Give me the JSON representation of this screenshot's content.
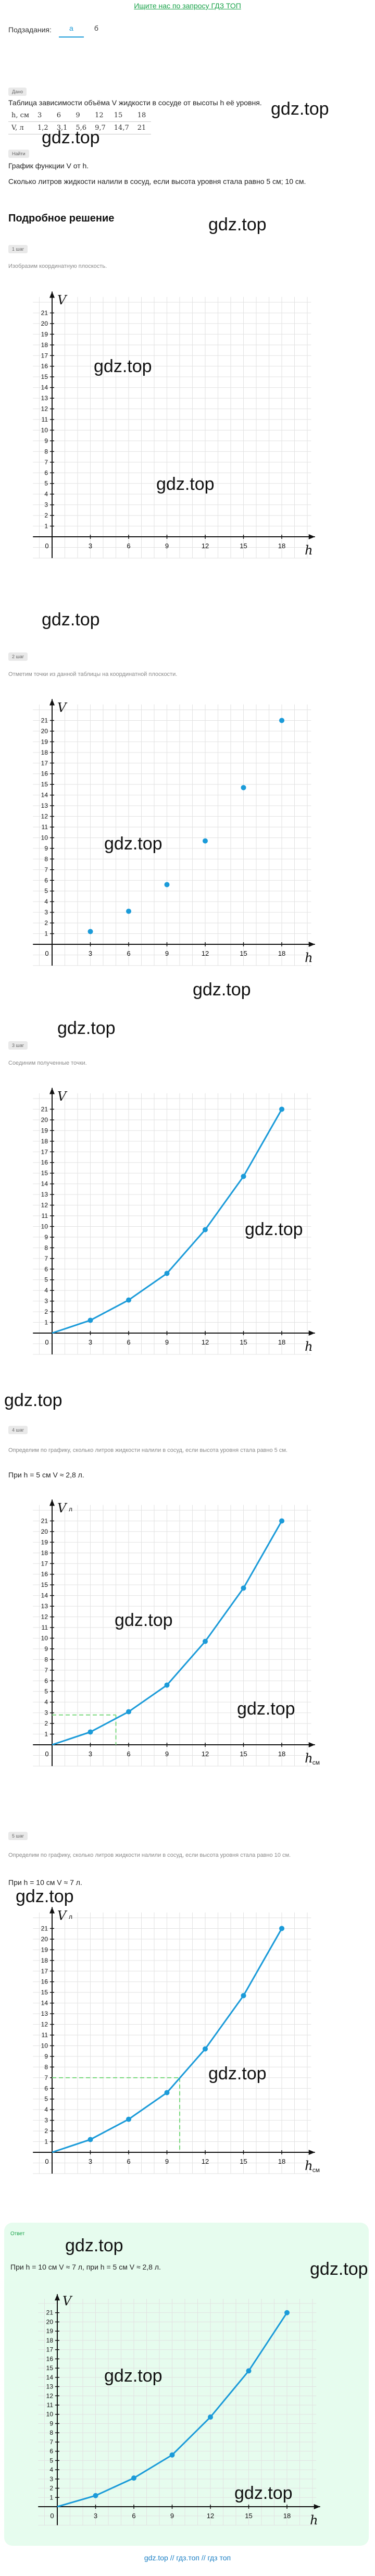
{
  "top_link": "Ищите нас по запросу ГДЗ ТОП",
  "tabs_label": "Подзадания:",
  "tabs": [
    "а",
    "б"
  ],
  "given": {
    "tag": "Дано",
    "text": "Таблица зависимости объёма V жидкости в сосуде от высоты h её уровня.",
    "row1": [
      "h, см",
      "3",
      "6",
      "9",
      "12",
      "15",
      "18"
    ],
    "row2": [
      "V, л",
      "1,2",
      "3,1",
      "5,6",
      "9,7",
      "14,7",
      "21"
    ]
  },
  "find": {
    "tag": "Найти",
    "line1": "График функции V от h.",
    "line2": "Сколько литров жидкости налили в сосуд, если высота уровня стала равно 5 см; 10 см."
  },
  "solution_title": "Подробное решение",
  "steps": [
    {
      "tag": "1 шаг",
      "text": "Изобразим координатную плоскость."
    },
    {
      "tag": "2 шаг",
      "text": "Отметим точки из данной таблицы на координатной плоскости."
    },
    {
      "tag": "3 шаг",
      "text": "Соединим полученные точки."
    },
    {
      "tag": "4 шаг",
      "text": "Определим по графику, сколько литров жидкости налили в сосуд, если высота уровня стала равно 5 см.",
      "result": "При h = 5 см V ≈ 2,8 л."
    },
    {
      "tag": "5 шаг",
      "text": "Определим по графику, сколько литров жидкости налили в сосуд, если высота уровня стала равно 10 см.",
      "result": "При h = 10 см V ≈ 7 л."
    }
  ],
  "answer": {
    "tag": "Ответ",
    "text": "При h = 10 см V ≈ 7 л, при h = 5 см V ≈ 2,8 л."
  },
  "watermark": "gdz.top",
  "footer": "gdz.top // гдз.топ // гдз топ",
  "chart_data": [
    {
      "type": "axes",
      "xlabel": "h",
      "ylabel": "V",
      "xticks": [
        3,
        6,
        9,
        12,
        15,
        18
      ],
      "yticks": [
        1,
        2,
        3,
        4,
        5,
        6,
        7,
        8,
        9,
        10,
        11,
        12,
        13,
        14,
        15,
        16,
        17,
        18,
        19,
        20,
        21
      ],
      "points": []
    },
    {
      "type": "scatter",
      "xlabel": "h",
      "ylabel": "V",
      "x": [
        3,
        6,
        9,
        12,
        15,
        18
      ],
      "y": [
        1.2,
        3.1,
        5.6,
        9.7,
        14.7,
        21
      ]
    },
    {
      "type": "line",
      "xlabel": "h",
      "ylabel": "V",
      "x": [
        0,
        3,
        6,
        9,
        12,
        15,
        18
      ],
      "y": [
        0,
        1.2,
        3.1,
        5.6,
        9.7,
        14.7,
        21
      ]
    },
    {
      "type": "line",
      "xlabel": "h, см",
      "ylabel": "V, л",
      "x": [
        0,
        3,
        6,
        9,
        12,
        15,
        18
      ],
      "y": [
        0,
        1.2,
        3.1,
        5.6,
        9.7,
        14.7,
        21
      ],
      "guide": [
        5,
        2.8
      ]
    },
    {
      "type": "line",
      "xlabel": "h, см",
      "ylabel": "V, л",
      "x": [
        0,
        3,
        6,
        9,
        12,
        15,
        18
      ],
      "y": [
        0,
        1.2,
        3.1,
        5.6,
        9.7,
        14.7,
        21
      ],
      "guide": [
        10,
        7
      ]
    },
    {
      "type": "line",
      "xlabel": "h",
      "ylabel": "V",
      "x": [
        0,
        3,
        6,
        9,
        12,
        15,
        18
      ],
      "y": [
        0,
        1.2,
        3.1,
        5.6,
        9.7,
        14.7,
        21
      ]
    }
  ]
}
